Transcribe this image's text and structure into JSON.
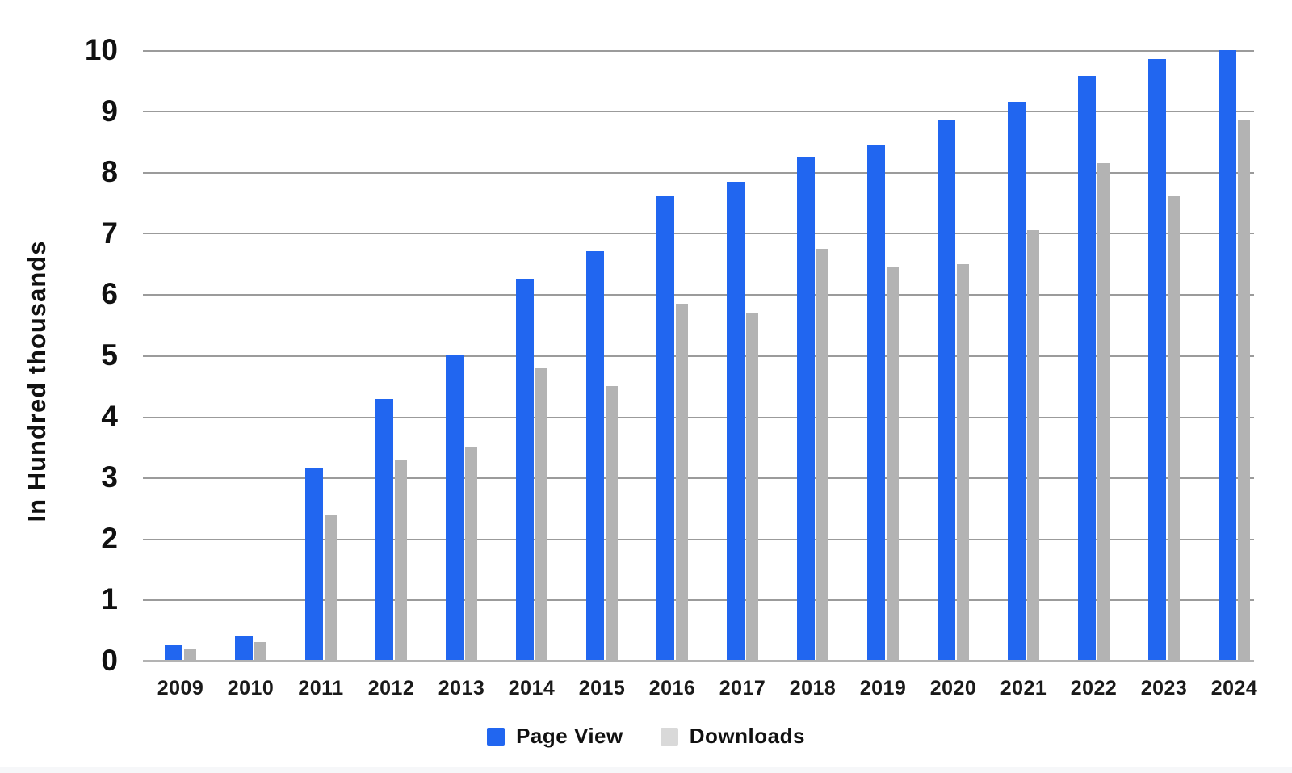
{
  "chart_data": {
    "type": "bar",
    "title": "",
    "xlabel": "",
    "ylabel": "In Hundred thousands",
    "ylim": [
      0,
      10
    ],
    "yticks": [
      "0",
      "1",
      "2",
      "3",
      "4",
      "5",
      "6",
      "7",
      "8",
      "9",
      "10"
    ],
    "grid": true,
    "legend_position": "bottom",
    "categories": [
      "2009",
      "2010",
      "2011",
      "2012",
      "2013",
      "2014",
      "2015",
      "2016",
      "2017",
      "2018",
      "2019",
      "2020",
      "2021",
      "2022",
      "2023",
      "2024"
    ],
    "series": [
      {
        "name": "Page View",
        "color": "#2166f0",
        "legend_color": "#2166f0",
        "values": [
          0.27,
          0.4,
          3.15,
          4.28,
          5.0,
          6.25,
          6.7,
          7.6,
          7.85,
          8.25,
          8.45,
          8.85,
          9.15,
          9.58,
          9.85,
          10.0
        ]
      },
      {
        "name": "Downloads",
        "color": "#b3b3b3",
        "legend_color": "#d9d9d9",
        "values": [
          0.2,
          0.3,
          2.4,
          3.3,
          3.5,
          4.8,
          4.5,
          5.85,
          5.7,
          6.75,
          6.45,
          6.5,
          7.05,
          8.15,
          7.6,
          8.85
        ]
      }
    ]
  },
  "style": {
    "grid_color": "#9b9b9b",
    "axis_line_color": "#b3b3b3",
    "text_color": "#111111",
    "background": "#ffffff",
    "footer_strip_color": "#f6f7f9"
  }
}
